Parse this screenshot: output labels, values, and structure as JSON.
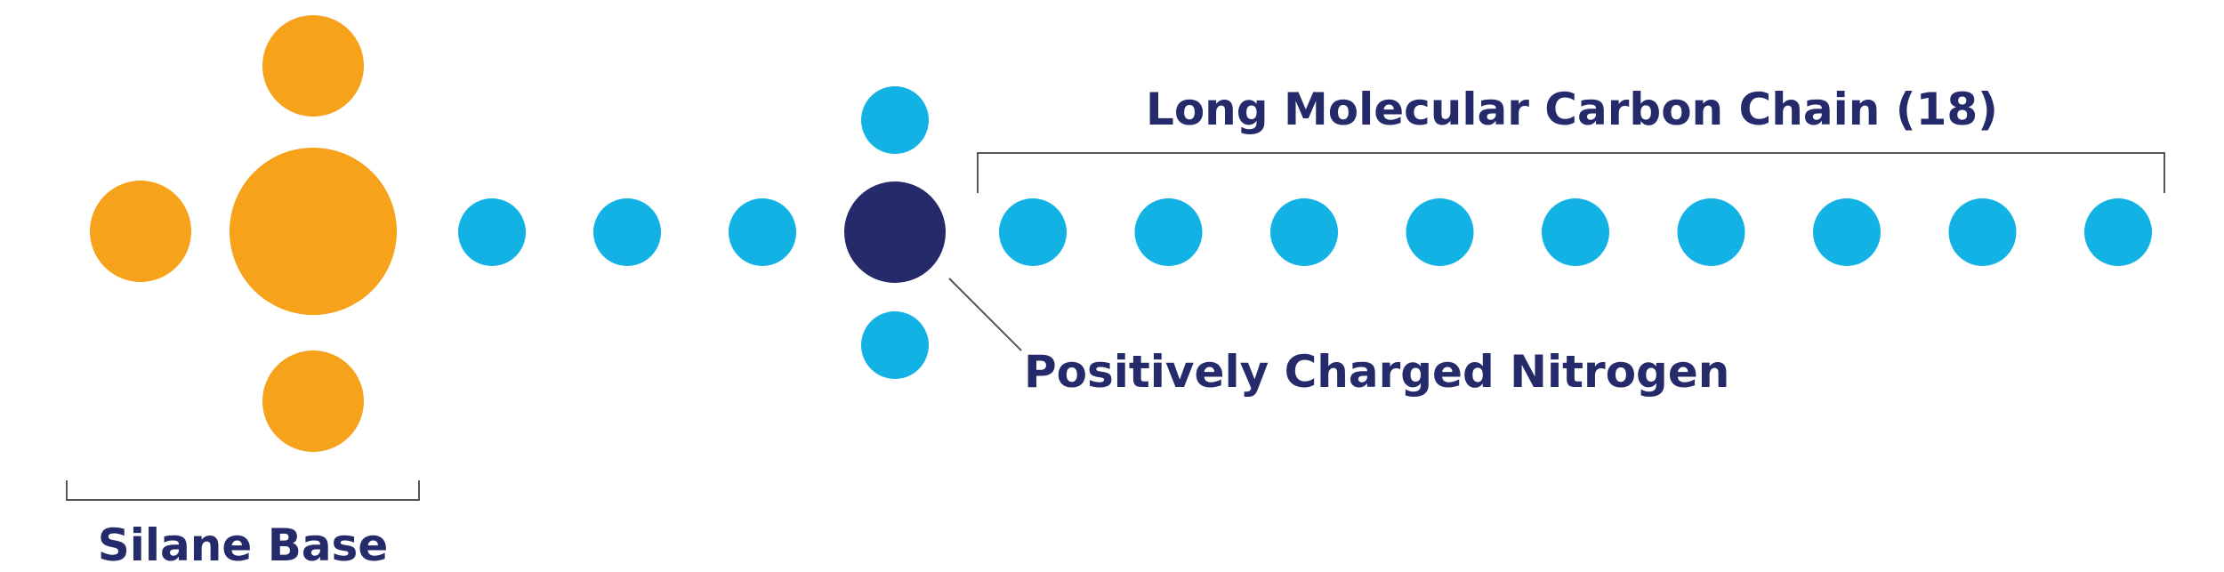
{
  "labels": {
    "carbon_chain": "Long Molecular Carbon Chain (18)",
    "nitrogen": "Positively Charged Nitrogen",
    "silane_base": "Silane Base"
  },
  "colors": {
    "silane": "#F7A21B",
    "nitrogen": "#252A6A",
    "carbon": "#13B2E4",
    "text": "#252A6A",
    "bracket": "#555555"
  },
  "carbon_chain": {
    "count": 9
  },
  "linker_carbons": {
    "count": 3
  }
}
